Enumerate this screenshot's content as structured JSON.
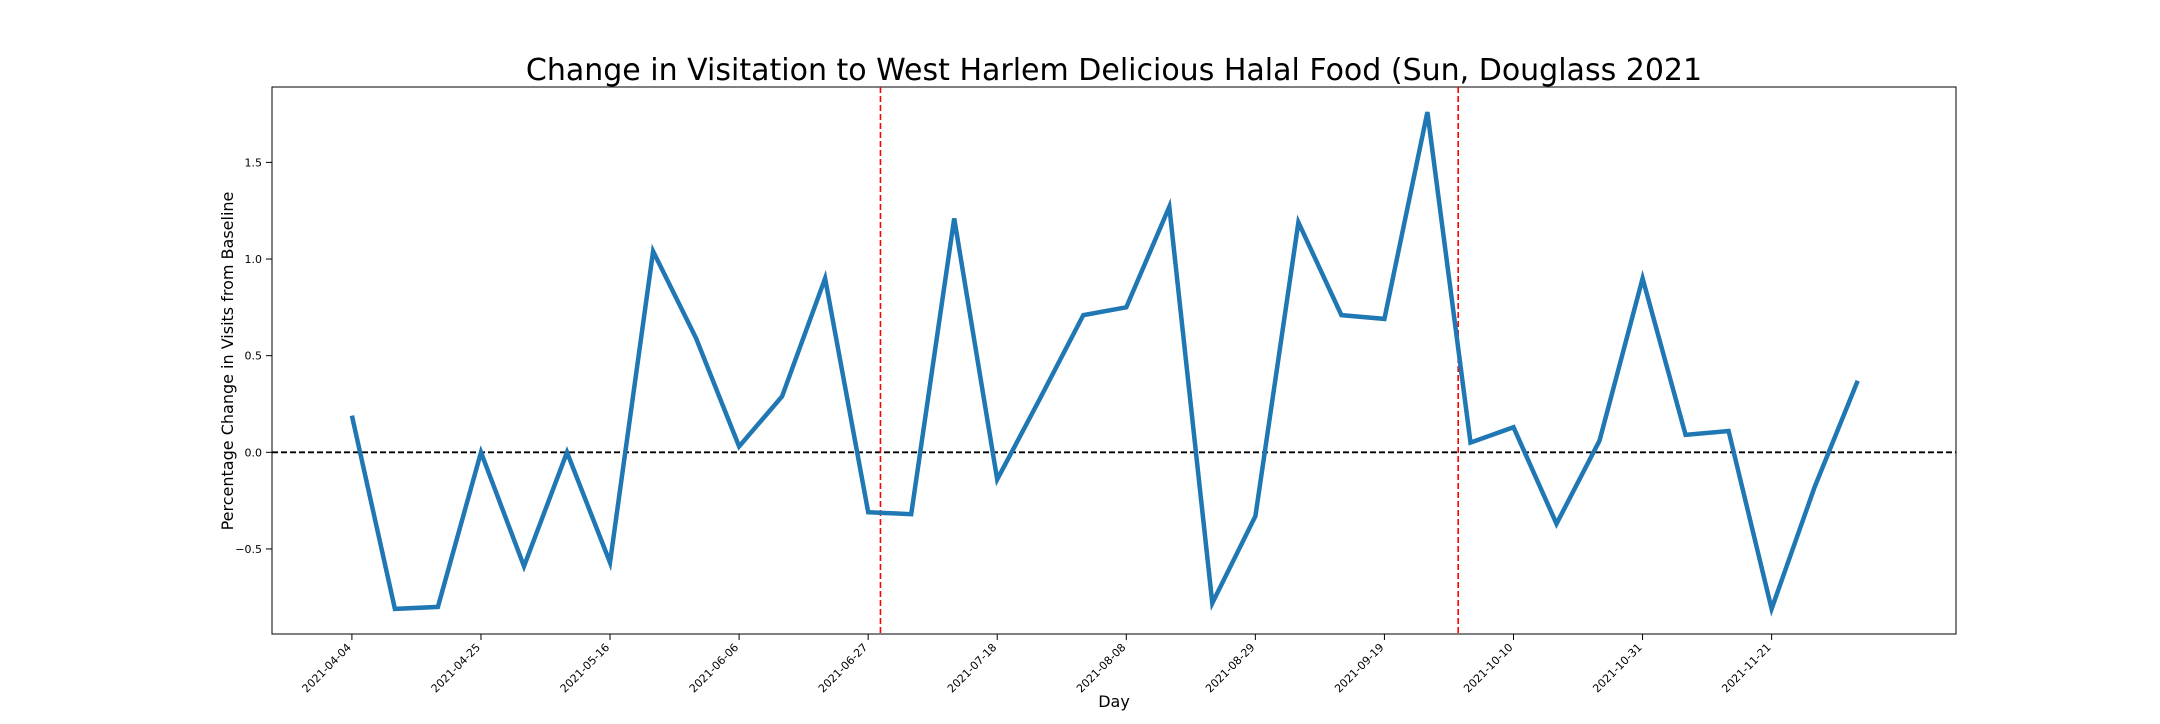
{
  "chart_data": {
    "type": "line",
    "title": "Change in Visitation to West Harlem Delicious Halal Food (Sun, Douglass 2021",
    "xlabel": "Day",
    "ylabel": "Percentage Change in Visits from Baseline",
    "x_tick_labels": [
      "2021-04-04",
      "2021-04-25",
      "2021-05-16",
      "2021-06-06",
      "2021-06-27",
      "2021-07-18",
      "2021-08-08",
      "2021-08-29",
      "2021-09-19",
      "2021-10-10",
      "2021-10-31",
      "2021-11-21"
    ],
    "y_tick_labels": [
      "-0.5",
      "0.0",
      "0.5",
      "1.0",
      "1.5"
    ],
    "x_range": [
      "2021-03-22",
      "2021-12-21"
    ],
    "ylim": [
      -0.94,
      1.89
    ],
    "grid": false,
    "legend": "none",
    "series": [
      {
        "color": "#1f77b4",
        "points": [
          {
            "x": "2021-04-04",
            "y": 0.19
          },
          {
            "x": "2021-04-11",
            "y": -0.81
          },
          {
            "x": "2021-04-18",
            "y": -0.8
          },
          {
            "x": "2021-04-25",
            "y": 0.0
          },
          {
            "x": "2021-05-02",
            "y": -0.59
          },
          {
            "x": "2021-05-09",
            "y": 0.0
          },
          {
            "x": "2021-05-16",
            "y": -0.57
          },
          {
            "x": "2021-05-23",
            "y": 1.04
          },
          {
            "x": "2021-05-30",
            "y": 0.59
          },
          {
            "x": "2021-06-06",
            "y": 0.03
          },
          {
            "x": "2021-06-13",
            "y": 0.29
          },
          {
            "x": "2021-06-20",
            "y": 0.9
          },
          {
            "x": "2021-06-27",
            "y": -0.31
          },
          {
            "x": "2021-07-04",
            "y": -0.32
          },
          {
            "x": "2021-07-11",
            "y": 1.21
          },
          {
            "x": "2021-07-18",
            "y": -0.14
          },
          {
            "x": "2021-07-25",
            "y": 0.28
          },
          {
            "x": "2021-08-01",
            "y": 0.71
          },
          {
            "x": "2021-08-08",
            "y": 0.75
          },
          {
            "x": "2021-08-15",
            "y": 1.27
          },
          {
            "x": "2021-08-22",
            "y": -0.78
          },
          {
            "x": "2021-08-29",
            "y": -0.33
          },
          {
            "x": "2021-09-05",
            "y": 1.19
          },
          {
            "x": "2021-09-12",
            "y": 0.71
          },
          {
            "x": "2021-09-19",
            "y": 0.69
          },
          {
            "x": "2021-09-26",
            "y": 1.76
          },
          {
            "x": "2021-10-03",
            "y": 0.05
          },
          {
            "x": "2021-10-10",
            "y": 0.13
          },
          {
            "x": "2021-10-17",
            "y": -0.37
          },
          {
            "x": "2021-10-24",
            "y": 0.06
          },
          {
            "x": "2021-10-31",
            "y": 0.9
          },
          {
            "x": "2021-11-07",
            "y": 0.09
          },
          {
            "x": "2021-11-14",
            "y": 0.11
          },
          {
            "x": "2021-11-21",
            "y": -0.81
          },
          {
            "x": "2021-11-28",
            "y": -0.18
          },
          {
            "x": "2021-12-05",
            "y": 0.37
          }
        ]
      }
    ],
    "reference_lines": [
      {
        "orientation": "horizontal",
        "y": 0.0,
        "color": "#000000",
        "style": "dashed"
      },
      {
        "orientation": "vertical",
        "x": "2021-06-29",
        "color": "#ff0000",
        "style": "dashed"
      },
      {
        "orientation": "vertical",
        "x": "2021-10-01",
        "color": "#ff0000",
        "style": "dashed"
      }
    ]
  }
}
